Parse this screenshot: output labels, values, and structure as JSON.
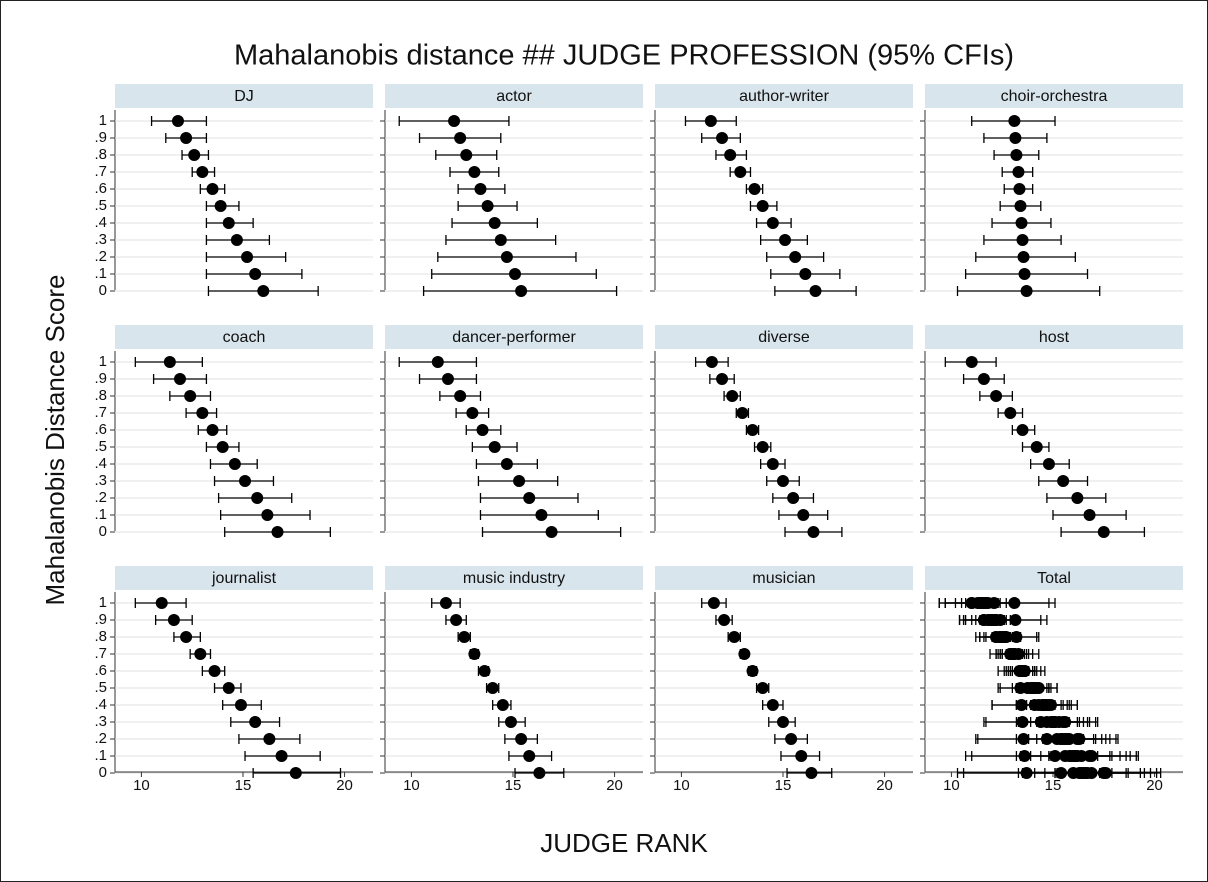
{
  "chart_data": {
    "type": "dot-errorbar",
    "title": "Mahalanobis distance ## JUDGE PROFESSION (95% CFIs)",
    "xlabel": "JUDGE RANK",
    "ylabel": "Mahalanobis Distance Score",
    "categories": [
      "1",
      ".9",
      ".8",
      ".7",
      ".6",
      ".5",
      ".4",
      ".3",
      ".2",
      ".1",
      "0"
    ],
    "xlim": [
      8.7,
      21.4
    ],
    "xticks": [
      10,
      15,
      20
    ],
    "color": "#000000",
    "grid": true,
    "panels": [
      {
        "name": "DJ",
        "values": [
          11.8,
          12.2,
          12.6,
          13.0,
          13.5,
          13.9,
          14.3,
          14.7,
          15.2,
          15.6,
          16.0
        ],
        "lower": [
          10.5,
          11.2,
          12.0,
          12.5,
          12.9,
          13.2,
          13.2,
          13.2,
          13.2,
          13.2,
          13.3
        ],
        "upper": [
          13.2,
          13.2,
          13.3,
          13.6,
          14.1,
          14.8,
          15.5,
          16.3,
          17.1,
          17.9,
          18.7
        ]
      },
      {
        "name": "actor",
        "values": [
          12.1,
          12.4,
          12.7,
          13.1,
          13.4,
          13.75,
          14.1,
          14.4,
          14.7,
          15.1,
          15.4
        ],
        "lower": [
          9.4,
          10.4,
          11.2,
          11.9,
          12.3,
          12.3,
          12.0,
          11.7,
          11.3,
          11.0,
          10.6
        ],
        "upper": [
          14.8,
          14.4,
          14.2,
          14.3,
          14.6,
          15.2,
          16.2,
          17.1,
          18.1,
          19.1,
          20.1
        ]
      },
      {
        "name": "author-writer",
        "values": [
          11.45,
          12.0,
          12.4,
          12.9,
          13.6,
          14.0,
          14.5,
          15.1,
          15.6,
          16.1,
          16.6
        ],
        "lower": [
          10.2,
          11.0,
          11.7,
          12.4,
          13.2,
          13.4,
          13.7,
          13.9,
          14.2,
          14.4,
          14.6
        ],
        "upper": [
          12.7,
          12.9,
          13.2,
          13.4,
          14.0,
          14.7,
          15.4,
          16.2,
          17.0,
          17.8,
          18.6
        ]
      },
      {
        "name": "choir-orchestra",
        "values": [
          13.1,
          13.15,
          13.2,
          13.3,
          13.35,
          13.4,
          13.45,
          13.5,
          13.55,
          13.6,
          13.7
        ],
        "lower": [
          11.0,
          11.6,
          12.1,
          12.5,
          12.6,
          12.4,
          12.0,
          11.6,
          11.2,
          10.7,
          10.3
        ],
        "upper": [
          15.1,
          14.7,
          14.3,
          14.0,
          14.0,
          14.4,
          14.9,
          15.4,
          16.1,
          16.7,
          17.3
        ]
      },
      {
        "name": "coach",
        "values": [
          11.4,
          11.9,
          12.4,
          13.0,
          13.5,
          14.0,
          14.6,
          15.1,
          15.7,
          16.2,
          16.7
        ],
        "lower": [
          9.7,
          10.6,
          11.4,
          12.2,
          12.8,
          13.2,
          13.4,
          13.6,
          13.8,
          13.9,
          14.1
        ],
        "upper": [
          13.0,
          13.2,
          13.4,
          13.7,
          14.2,
          14.8,
          15.7,
          16.5,
          17.4,
          18.3,
          19.3
        ]
      },
      {
        "name": "dancer-performer",
        "values": [
          11.3,
          11.8,
          12.4,
          13.0,
          13.5,
          14.1,
          14.7,
          15.3,
          15.8,
          16.4,
          16.9
        ],
        "lower": [
          9.4,
          10.4,
          11.4,
          12.2,
          12.7,
          13.0,
          13.2,
          13.3,
          13.4,
          13.4,
          13.5
        ],
        "upper": [
          13.2,
          13.2,
          13.4,
          13.8,
          14.4,
          15.2,
          16.2,
          17.2,
          18.2,
          19.2,
          20.3
        ]
      },
      {
        "name": "diverse",
        "values": [
          11.5,
          12.0,
          12.5,
          13.0,
          13.5,
          14.0,
          14.5,
          15.0,
          15.5,
          16.0,
          16.5
        ],
        "lower": [
          10.7,
          11.4,
          12.1,
          12.7,
          13.2,
          13.6,
          13.9,
          14.2,
          14.5,
          14.8,
          15.1
        ],
        "upper": [
          12.3,
          12.6,
          12.9,
          13.3,
          13.8,
          14.4,
          15.1,
          15.8,
          16.5,
          17.2,
          17.9
        ]
      },
      {
        "name": "host",
        "values": [
          11.0,
          11.6,
          12.2,
          12.9,
          13.5,
          14.2,
          14.8,
          15.5,
          16.2,
          16.8,
          17.5
        ],
        "lower": [
          9.7,
          10.6,
          11.4,
          12.3,
          13.0,
          13.5,
          13.9,
          14.3,
          14.7,
          15.0,
          15.4
        ],
        "upper": [
          12.2,
          12.6,
          13.0,
          13.5,
          14.1,
          14.8,
          15.8,
          16.7,
          17.6,
          18.6,
          19.5
        ]
      },
      {
        "name": "journalist",
        "values": [
          11.0,
          11.6,
          12.2,
          12.9,
          13.6,
          14.3,
          14.9,
          15.6,
          16.3,
          16.9,
          17.6
        ],
        "lower": [
          9.7,
          10.7,
          11.6,
          12.4,
          13.0,
          13.6,
          14.0,
          14.4,
          14.8,
          15.1,
          15.5
        ],
        "upper": [
          12.2,
          12.5,
          12.9,
          13.4,
          14.1,
          14.9,
          15.9,
          16.8,
          17.8,
          18.8,
          19.8
        ]
      },
      {
        "name": "music industry",
        "values": [
          11.7,
          12.2,
          12.6,
          13.1,
          13.6,
          14.0,
          14.5,
          14.9,
          15.4,
          15.8,
          16.3
        ],
        "lower": [
          11.0,
          11.7,
          12.3,
          12.9,
          13.3,
          13.7,
          14.0,
          14.3,
          14.6,
          14.8,
          15.1
        ],
        "upper": [
          12.4,
          12.7,
          12.9,
          13.3,
          13.8,
          14.3,
          14.9,
          15.6,
          16.2,
          16.9,
          17.5
        ]
      },
      {
        "name": "musician",
        "values": [
          11.6,
          12.1,
          12.6,
          13.1,
          13.5,
          14.0,
          14.5,
          15.0,
          15.4,
          15.9,
          16.4
        ],
        "lower": [
          11.0,
          11.7,
          12.3,
          12.9,
          13.3,
          13.7,
          14.0,
          14.3,
          14.6,
          14.9,
          15.2
        ],
        "upper": [
          12.2,
          12.5,
          12.9,
          13.2,
          13.7,
          14.3,
          15.0,
          15.6,
          16.2,
          16.8,
          17.4
        ]
      }
    ],
    "total_panel": "Total"
  }
}
